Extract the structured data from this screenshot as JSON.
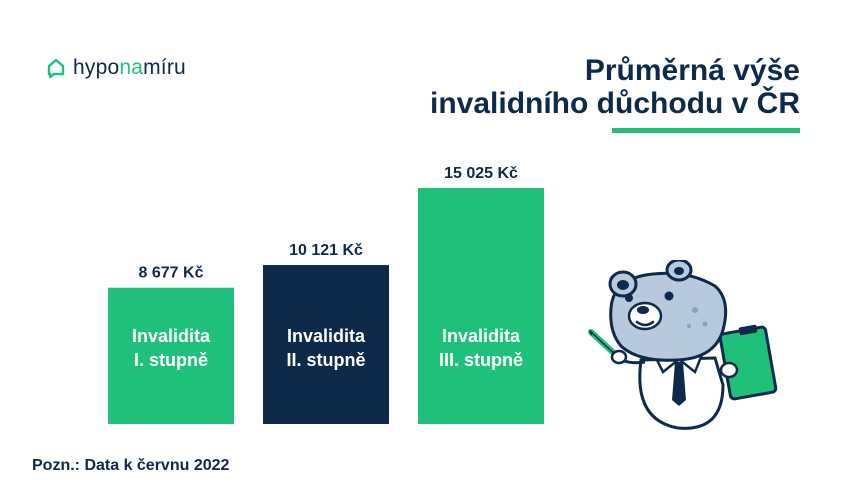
{
  "brand": {
    "logo_part1": "hypo",
    "logo_part2": "na",
    "logo_part3": "míru",
    "icon": "house-chat-icon"
  },
  "title": {
    "line1": "Průměrná výše",
    "line2": "invalidního důchodu v ČR"
  },
  "note": "Pozn.: Data k červnu 2022",
  "colors": {
    "green": "#1fc07a",
    "navy": "#0d2a4a",
    "text": "#0d2a4a"
  },
  "chart_data": {
    "type": "bar",
    "title": "Průměrná výše invalidního důchodu v ČR",
    "categories": [
      [
        "Invalidita",
        "I. stupně"
      ],
      [
        "Invalidita",
        "II. stupně"
      ],
      [
        "Invalidita",
        "III. stupně"
      ]
    ],
    "values": [
      8677,
      10121,
      15025
    ],
    "value_labels": [
      "8 677 Kč",
      "10 121 Kč",
      "15 025 Kč"
    ],
    "bar_colors": [
      "#1fc07a",
      "#0d2a4a",
      "#1fc07a"
    ],
    "unit": "Kč",
    "ylim": [
      0,
      15025
    ],
    "grid": false,
    "legend": "none"
  },
  "mascot": {
    "name": "bear-mascot-illustration"
  }
}
